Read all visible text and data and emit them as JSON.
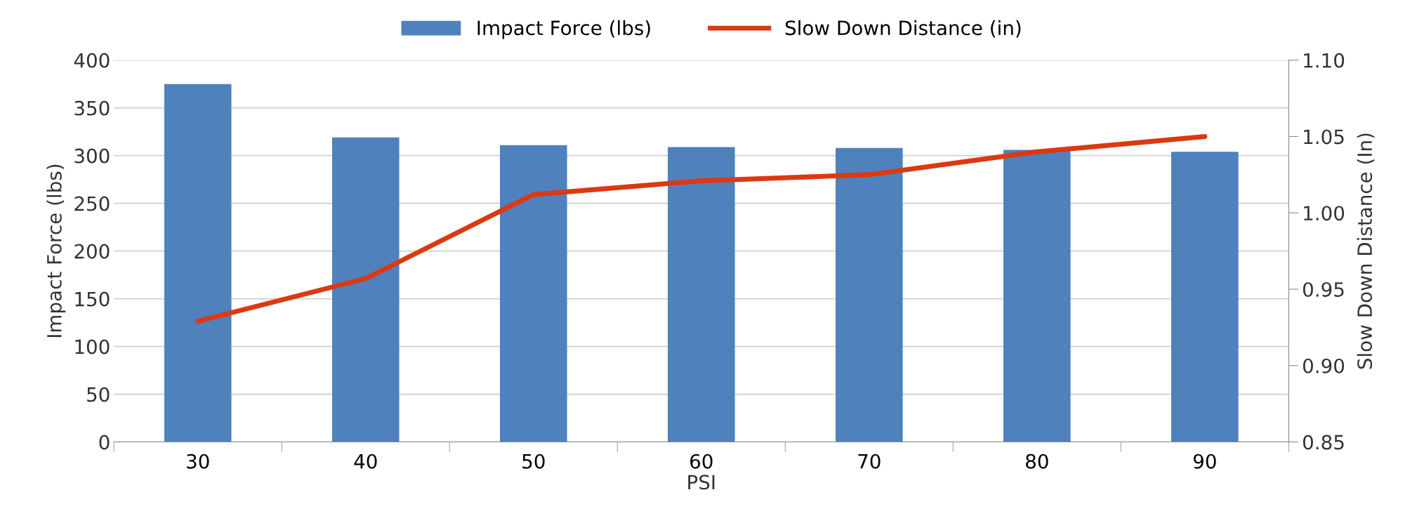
{
  "chart_data": {
    "type": "bar",
    "xlabel": "PSI",
    "ylabel": "Impact Force (lbs)",
    "y2label": "Slow Down Distance (In)",
    "categories": [
      "30",
      "40",
      "50",
      "60",
      "70",
      "80",
      "90"
    ],
    "series": [
      {
        "name": "Impact Force (lbs)",
        "color": "#4f81bd",
        "values": [
          375,
          319,
          311,
          309,
          308,
          306,
          304
        ]
      },
      {
        "name": "Slow Down Distance (in)",
        "type": "line",
        "axis": "y2",
        "color": "#dc3912",
        "values": [
          0.929,
          0.957,
          1.012,
          1.021,
          1.025,
          1.04,
          1.05
        ]
      }
    ],
    "ylim": [
      0,
      400
    ],
    "yticks": [
      0,
      50,
      100,
      150,
      200,
      250,
      300,
      350,
      400
    ],
    "y2lim": [
      0.85,
      1.1
    ],
    "y2ticks": [
      {
        "value": 0.85,
        "label": "0.85"
      },
      {
        "value": 0.9,
        "label": "0.90"
      },
      {
        "value": 0.95,
        "label": "0.95"
      },
      {
        "value": 1.0,
        "label": "1.00"
      },
      {
        "value": 1.05,
        "label": "1.05"
      },
      {
        "value": 1.1,
        "label": "1.10"
      }
    ],
    "grid": "y",
    "legend": "top",
    "marker": "none"
  }
}
